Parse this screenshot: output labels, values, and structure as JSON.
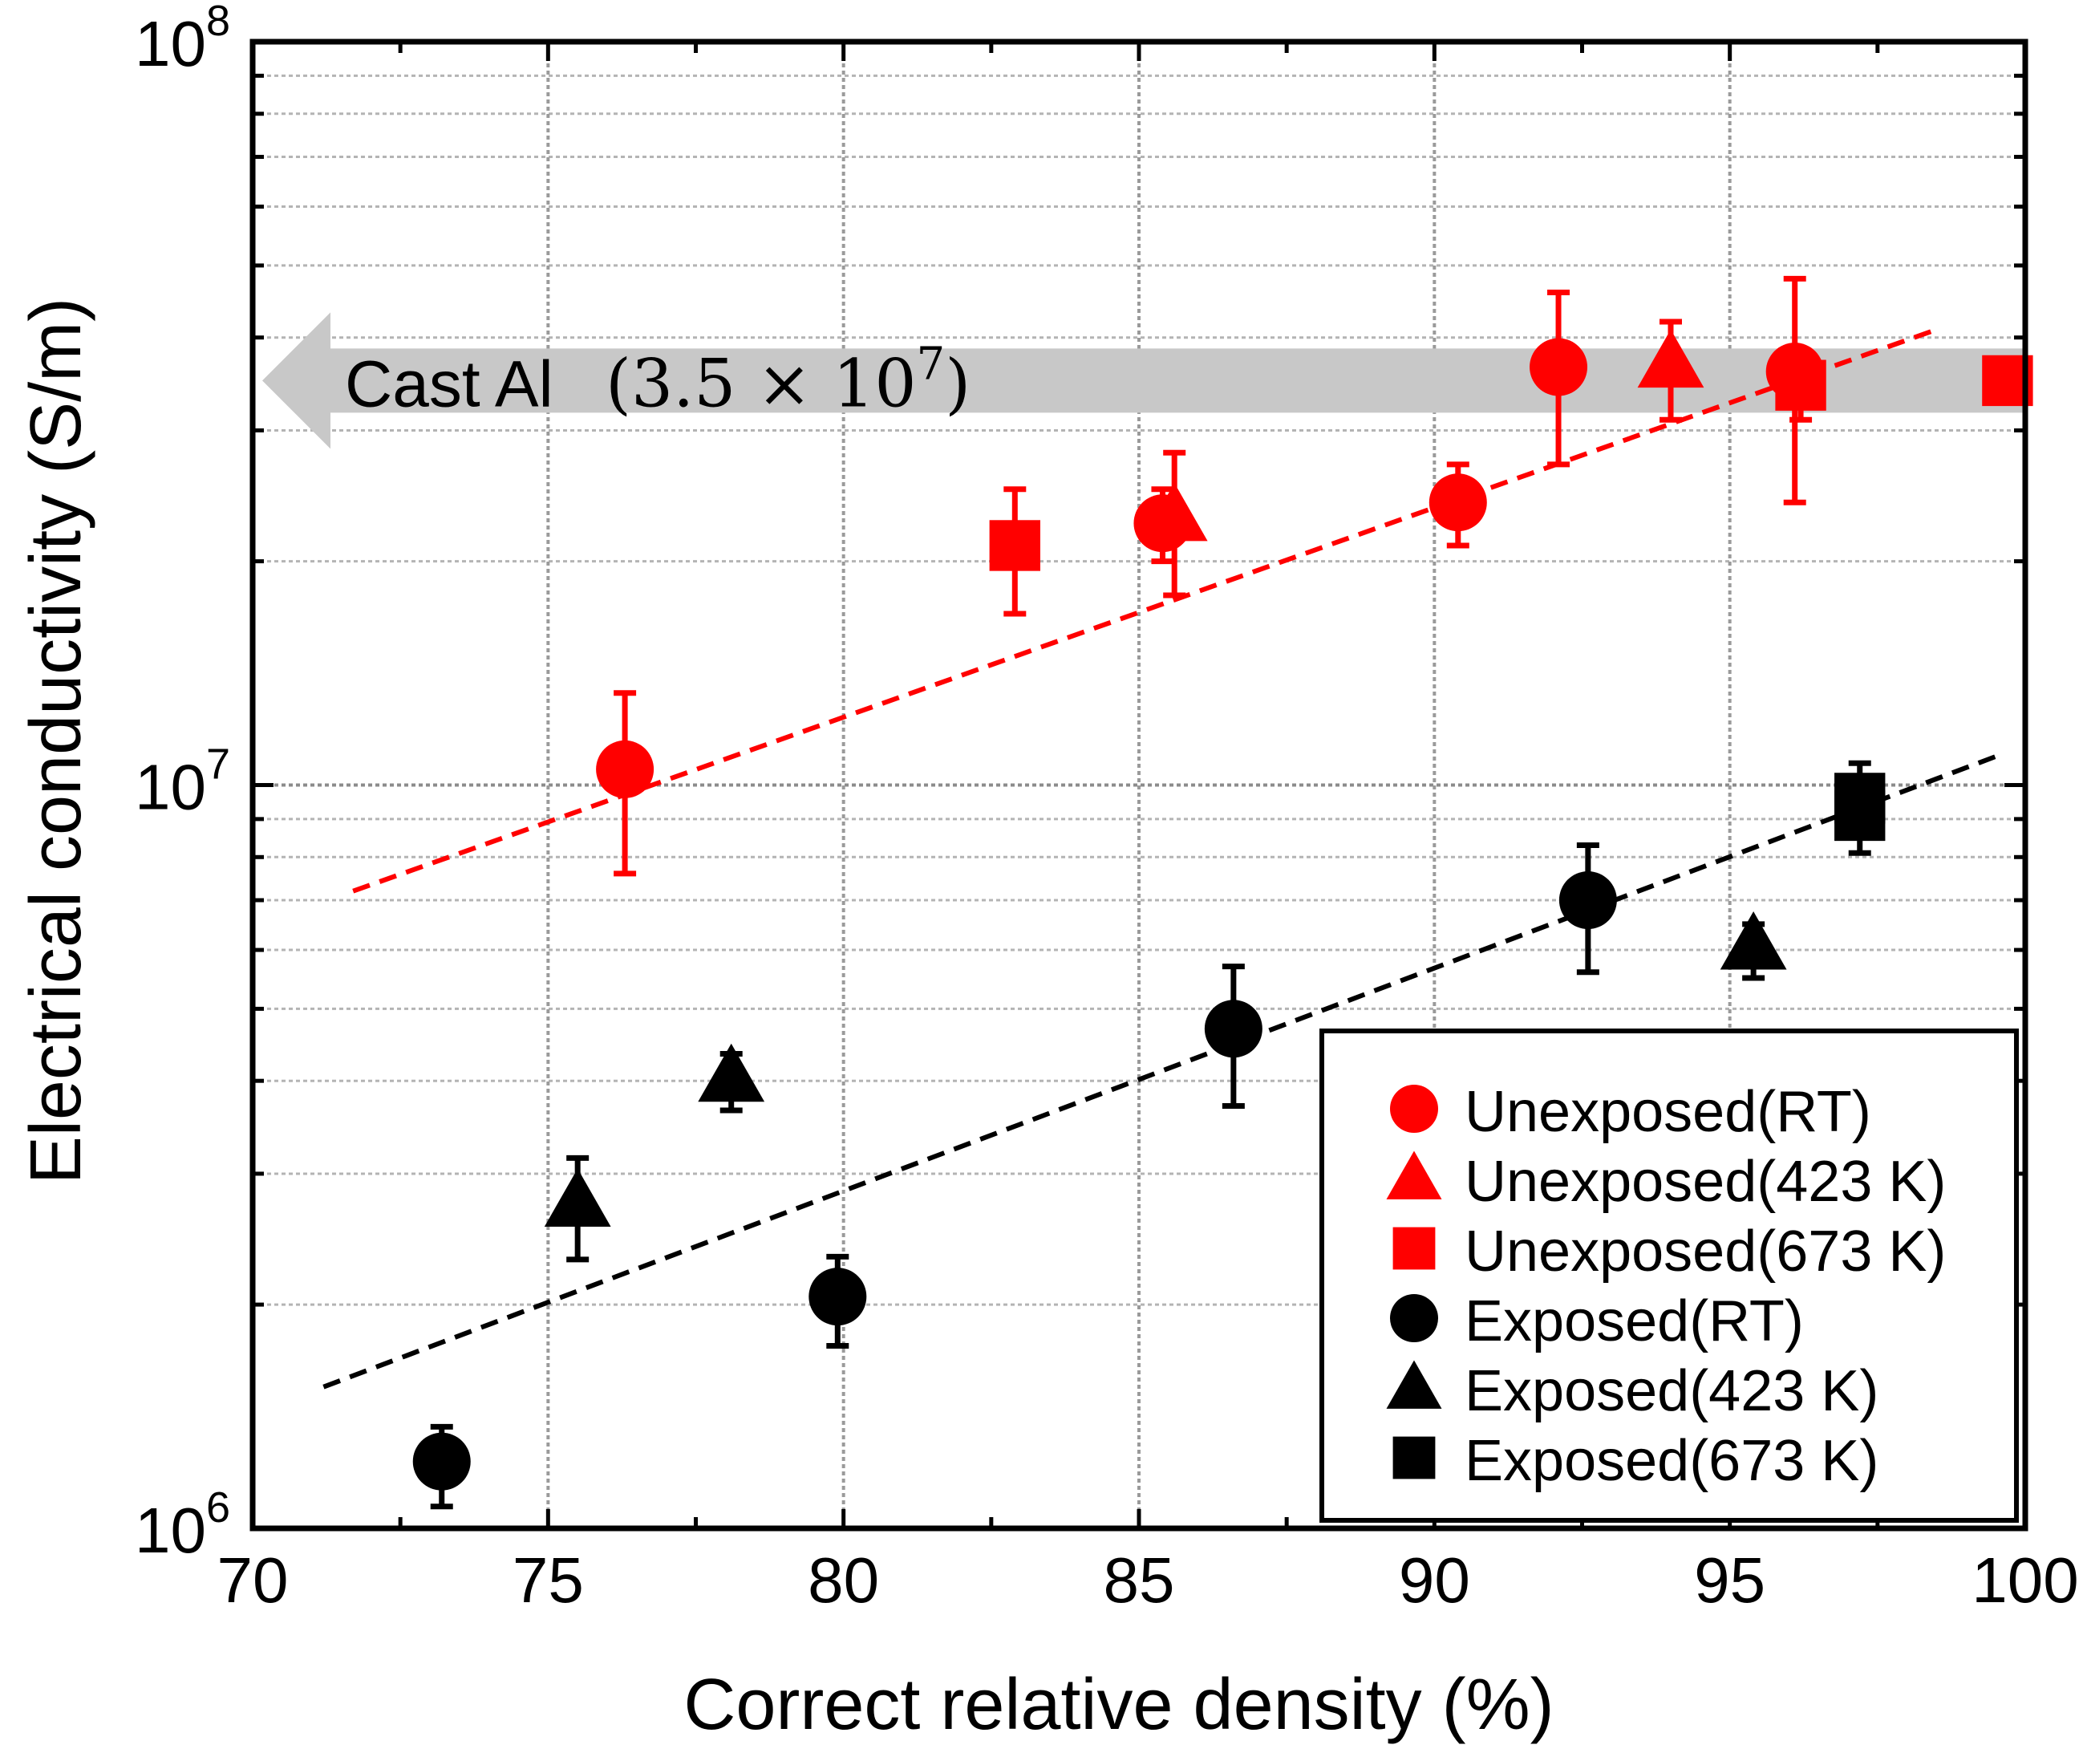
{
  "chart_data": {
    "type": "scatter",
    "xlabel": "Correct relative density (%)",
    "ylabel": "Electrical conductivity (S/m)",
    "xlim": [
      70,
      100
    ],
    "ylim": [
      1000000,
      100000000
    ],
    "yscale": "log",
    "xticks": [
      "70",
      "75",
      "80",
      "85",
      "90",
      "95",
      "100"
    ],
    "yticks": [
      {
        "base": "10",
        "exp": "6",
        "value": 1000000
      },
      {
        "base": "10",
        "exp": "7",
        "value": 10000000
      },
      {
        "base": "10",
        "exp": "8",
        "value": 100000000
      }
    ],
    "grid": true,
    "annotation": {
      "label_text": "Cast Al",
      "value_text_open": "(3.5 × 10",
      "value_text_exp": "7",
      "value_text_close": ")",
      "value": 35000000,
      "x_from": 70,
      "x_to": 100,
      "color": "#c8c8c8"
    },
    "series": [
      {
        "name": "Unexposed(RT)",
        "marker": "circle",
        "color": "#ff0000",
        "points": [
          {
            "x": 76.3,
            "y": 10500000,
            "err_low": 7600000,
            "err_high": 13300000
          },
          {
            "x": 85.4,
            "y": 22500000,
            "err_low": 20000000,
            "err_high": 25000000
          },
          {
            "x": 90.4,
            "y": 24000000,
            "err_low": 21000000,
            "err_high": 27000000
          },
          {
            "x": 92.1,
            "y": 36500000,
            "err_low": 27000000,
            "err_high": 46000000
          },
          {
            "x": 96.1,
            "y": 36000000,
            "err_low": 24000000,
            "err_high": 48000000
          }
        ]
      },
      {
        "name": "Unexposed(423 K)",
        "marker": "triangle",
        "color": "#ff0000",
        "points": [
          {
            "x": 85.6,
            "y": 23000000,
            "err_low": 18000000,
            "err_high": 28000000
          },
          {
            "x": 94.0,
            "y": 37000000,
            "err_low": 31000000,
            "err_high": 42000000
          }
        ]
      },
      {
        "name": "Unexposed(673 K)",
        "marker": "square",
        "color": "#ff0000",
        "points": [
          {
            "x": 82.9,
            "y": 21000000,
            "err_low": 17000000,
            "err_high": 25000000
          },
          {
            "x": 96.2,
            "y": 34500000,
            "err_low": 31000000,
            "err_high": 38000000
          },
          {
            "x": 99.7,
            "y": 35000000,
            "err_low": 33000000,
            "err_high": 37000000
          }
        ]
      },
      {
        "name": "Exposed(RT)",
        "marker": "circle",
        "color": "#000000",
        "points": [
          {
            "x": 73.2,
            "y": 1230000,
            "err_low": 1070000,
            "err_high": 1370000
          },
          {
            "x": 79.9,
            "y": 2050000,
            "err_low": 1760000,
            "err_high": 2320000
          },
          {
            "x": 86.6,
            "y": 4700000,
            "err_low": 3700000,
            "err_high": 5700000
          },
          {
            "x": 92.6,
            "y": 7000000,
            "err_low": 5600000,
            "err_high": 8300000
          }
        ]
      },
      {
        "name": "Exposed(423 K)",
        "marker": "triangle",
        "color": "#000000",
        "points": [
          {
            "x": 75.5,
            "y": 2750000,
            "err_low": 2300000,
            "err_high": 3150000
          },
          {
            "x": 78.1,
            "y": 4050000,
            "err_low": 3650000,
            "err_high": 4350000
          },
          {
            "x": 95.4,
            "y": 6100000,
            "err_low": 5500000,
            "err_high": 6500000
          }
        ]
      },
      {
        "name": "Exposed(673 K)",
        "marker": "square",
        "color": "#000000",
        "points": [
          {
            "x": 97.2,
            "y": 9100000,
            "err_low": 8100000,
            "err_high": 10000000
          },
          {
            "x": 97.2,
            "y": 9600000,
            "err_low": 8800000,
            "err_high": 10700000
          }
        ]
      }
    ],
    "fit_lines": [
      {
        "name": "unexposed-fit",
        "color": "#ff0000",
        "style": "dashed",
        "x": [
          71.7,
          98.5
        ],
        "y": [
          7200000,
          41000000
        ]
      },
      {
        "name": "exposed-fit",
        "color": "#000000",
        "style": "dashed",
        "x": [
          71.2,
          99.6
        ],
        "y": [
          1550000,
          11000000
        ]
      }
    ],
    "legend": {
      "position": "bottom-right",
      "entries": [
        {
          "label": "Unexposed(RT)",
          "marker": "circle",
          "color": "#ff0000"
        },
        {
          "label": "Unexposed(423 K)",
          "marker": "triangle",
          "color": "#ff0000"
        },
        {
          "label": "Unexposed(673 K)",
          "marker": "square",
          "color": "#ff0000"
        },
        {
          "label": "Exposed(RT)",
          "marker": "circle",
          "color": "#000000"
        },
        {
          "label": "Exposed(423 K)",
          "marker": "triangle",
          "color": "#000000"
        },
        {
          "label": "Exposed(673 K)",
          "marker": "square",
          "color": "#000000"
        }
      ]
    }
  }
}
